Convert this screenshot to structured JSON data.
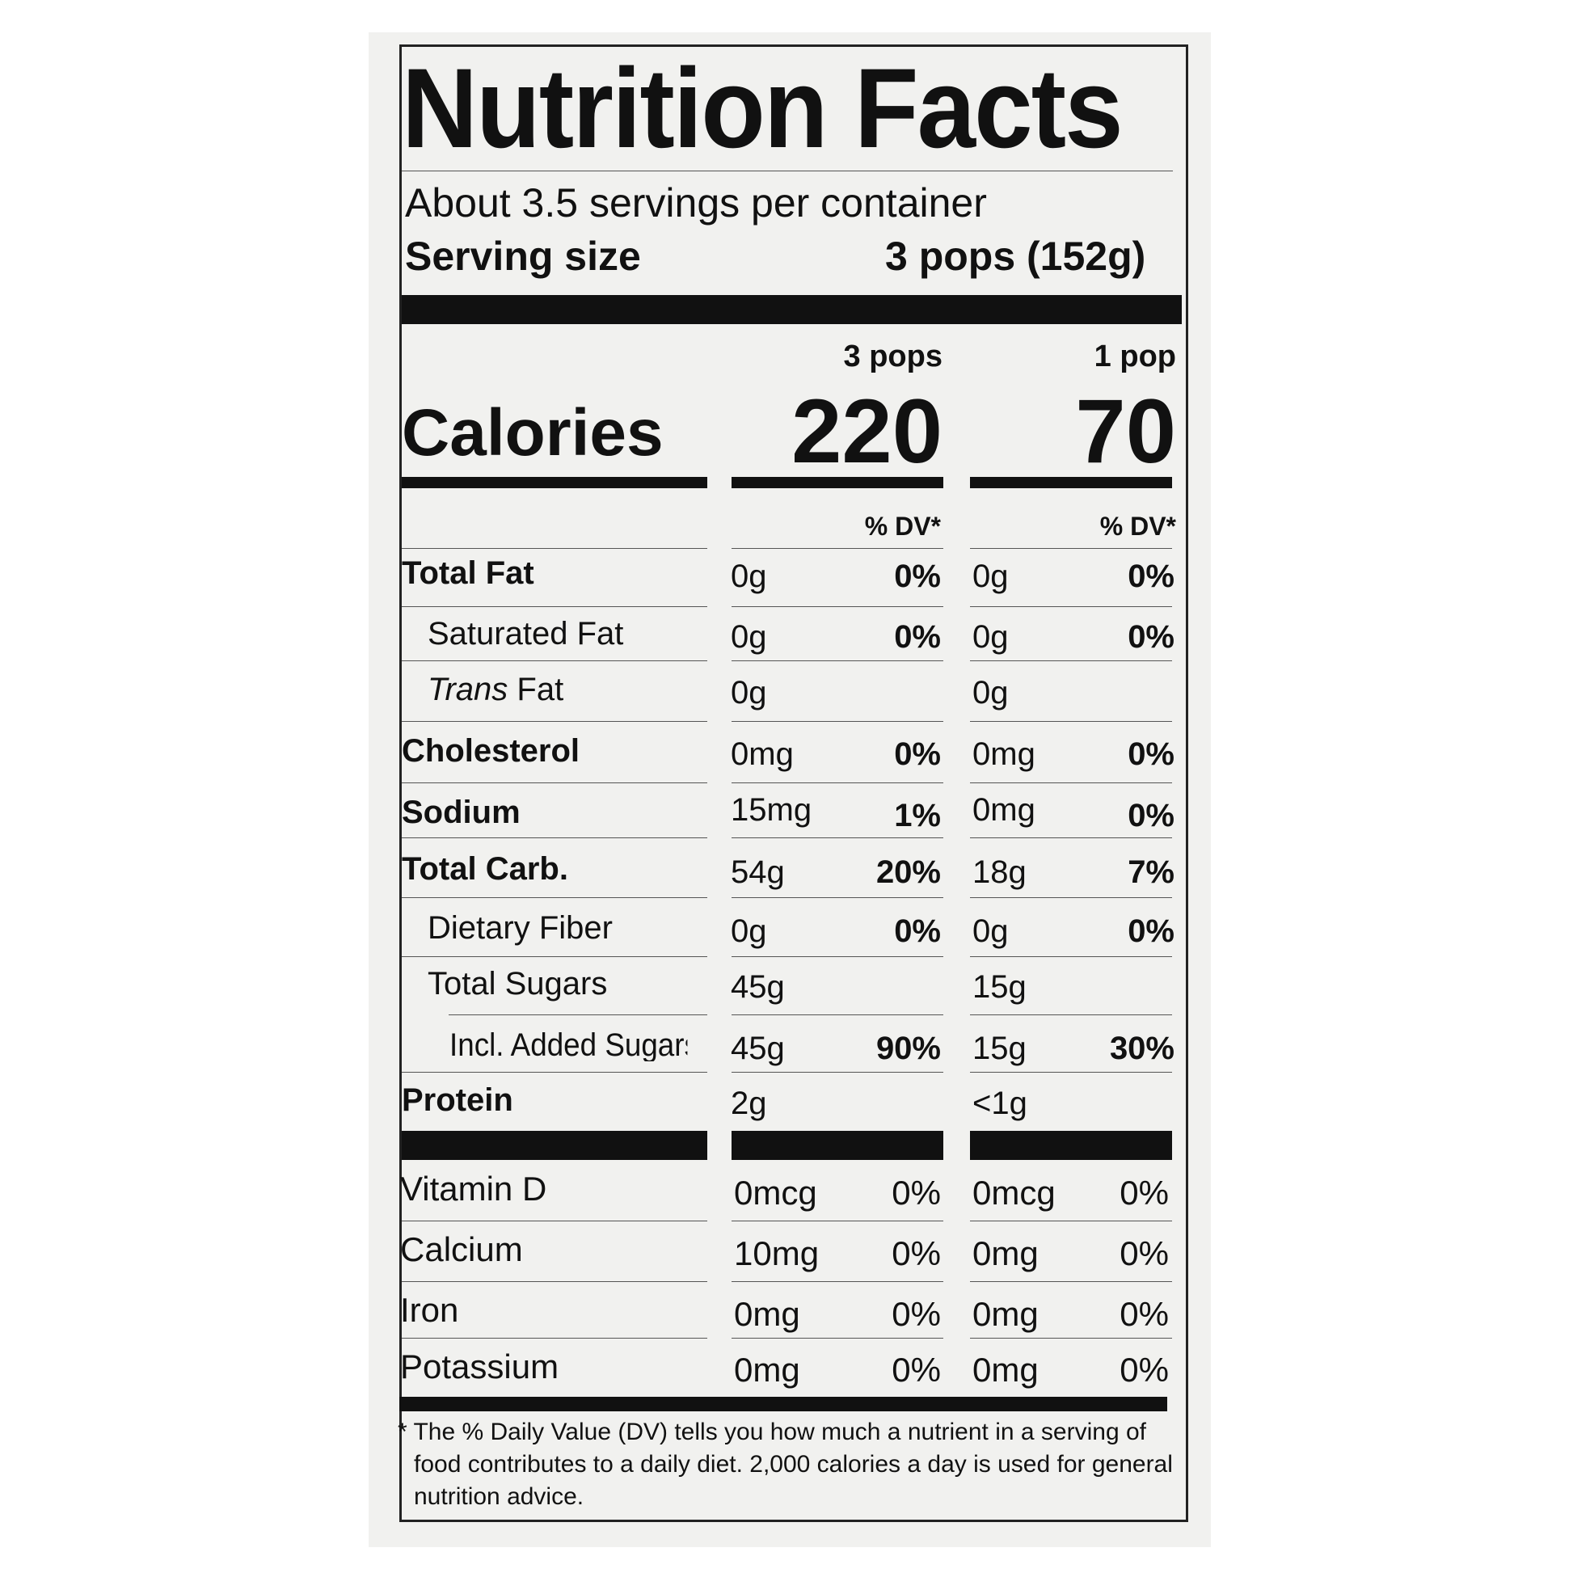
{
  "title": "Nutrition Facts",
  "servings_per_container": "About 3.5 servings per container",
  "serving_size_label": "Serving size",
  "serving_size_value": "3 pops (152g)",
  "columns": [
    {
      "header": "3 pops",
      "calories": "220",
      "dv_header": "% DV*"
    },
    {
      "header": "1 pop",
      "calories": "70",
      "dv_header": "% DV*"
    }
  ],
  "calories_label": "Calories",
  "nutrients": [
    {
      "name": "Total Fat",
      "amt1": "0g",
      "pct1": "0%",
      "amt2": "0g",
      "pct2": "0%"
    },
    {
      "name": "Saturated Fat",
      "amt1": "0g",
      "pct1": "0%",
      "amt2": "0g",
      "pct2": "0%"
    },
    {
      "name_italic": "Trans",
      "name_rest": " Fat",
      "amt1": "0g",
      "pct1": "",
      "amt2": "0g",
      "pct2": ""
    },
    {
      "name": "Cholesterol",
      "amt1": "0mg",
      "pct1": "0%",
      "amt2": "0mg",
      "pct2": "0%"
    },
    {
      "name": "Sodium",
      "amt1": "15mg",
      "pct1": "1%",
      "amt2": "0mg",
      "pct2": "0%"
    },
    {
      "name": "Total Carb.",
      "amt1": "54g",
      "pct1": "20%",
      "amt2": "18g",
      "pct2": "7%"
    },
    {
      "name": "Dietary Fiber",
      "amt1": "0g",
      "pct1": "0%",
      "amt2": "0g",
      "pct2": "0%"
    },
    {
      "name": "Total Sugars",
      "amt1": "45g",
      "pct1": "",
      "amt2": "15g",
      "pct2": ""
    },
    {
      "name": "Incl. Added Sugars",
      "amt1": "45g",
      "pct1": "90%",
      "amt2": "15g",
      "pct2": "30%"
    },
    {
      "name": "Protein",
      "amt1": "2g",
      "pct1": "",
      "amt2": "<1g",
      "pct2": ""
    }
  ],
  "vitamins": [
    {
      "name": "Vitamin D",
      "amt1": "0mcg",
      "pct1": "0%",
      "amt2": "0mcg",
      "pct2": "0%"
    },
    {
      "name": "Calcium",
      "amt1": "10mg",
      "pct1": "0%",
      "amt2": "0mg",
      "pct2": "0%"
    },
    {
      "name": "Iron",
      "amt1": "0mg",
      "pct1": "0%",
      "amt2": "0mg",
      "pct2": "0%"
    },
    {
      "name": "Potassium",
      "amt1": "0mg",
      "pct1": "0%",
      "amt2": "0mg",
      "pct2": "0%"
    }
  ],
  "footnote": [
    "* The % Daily Value (DV) tells you how much a nutrient in a serving of",
    "food contributes to a daily diet. 2,000 calories a day is used for general",
    "nutrition advice."
  ]
}
